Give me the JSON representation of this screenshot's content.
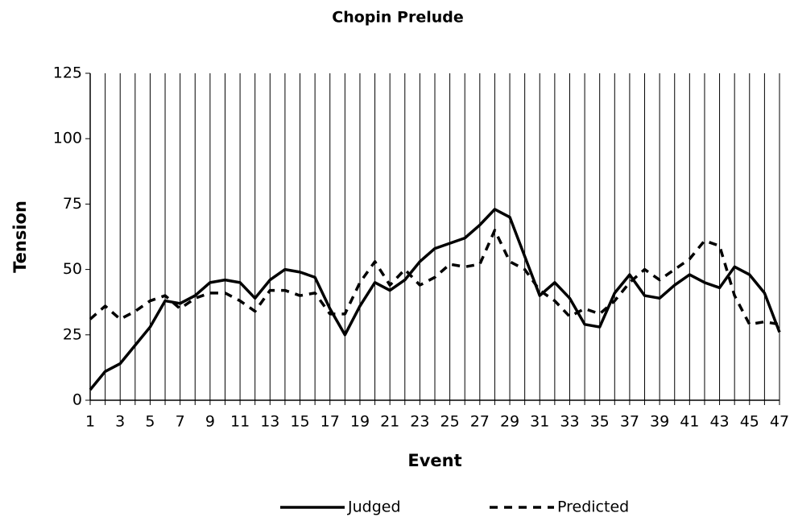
{
  "chart_data": {
    "type": "line",
    "title": "Chopin Prelude",
    "x_label": "Event",
    "y_label": "Tension",
    "categories": [
      1,
      null,
      3,
      null,
      5,
      null,
      7,
      null,
      9,
      null,
      11,
      null,
      13,
      null,
      15,
      null,
      17,
      null,
      19,
      null,
      21,
      null,
      23,
      null,
      25,
      null,
      27,
      null,
      29,
      null,
      31,
      null,
      33,
      null,
      35,
      null,
      37,
      null,
      39,
      null,
      41,
      null,
      43,
      null,
      45,
      null,
      47
    ],
    "series": [
      {
        "name": "Judged",
        "color": "#000000",
        "dash": "solid",
        "values": [
          4,
          11,
          14,
          21,
          28,
          38,
          37,
          40,
          45,
          46,
          45,
          39,
          46,
          50,
          49,
          47,
          35,
          25,
          36,
          45,
          42,
          46,
          53,
          58,
          60,
          62,
          67,
          73,
          70,
          55,
          40,
          45,
          39,
          29,
          28,
          41,
          48,
          40,
          39,
          44,
          48,
          45,
          43,
          51,
          48,
          41,
          26
        ]
      },
      {
        "name": "Predicted",
        "color": "#000000",
        "dash": "dashed",
        "values": [
          31,
          36,
          31,
          34,
          38,
          40,
          35,
          39,
          41,
          41,
          38,
          34,
          42,
          42,
          40,
          41,
          33,
          33,
          45,
          53,
          44,
          50,
          44,
          47,
          52,
          51,
          52,
          65,
          53,
          50,
          42,
          38,
          32,
          35,
          33,
          38,
          45,
          50,
          46,
          50,
          54,
          61,
          59,
          40,
          29,
          30,
          29
        ]
      }
    ],
    "ylim": [
      0,
      125
    ],
    "yticks": [
      0,
      25,
      50,
      75,
      100,
      125
    ],
    "grid": "x",
    "legend": "bottom"
  }
}
